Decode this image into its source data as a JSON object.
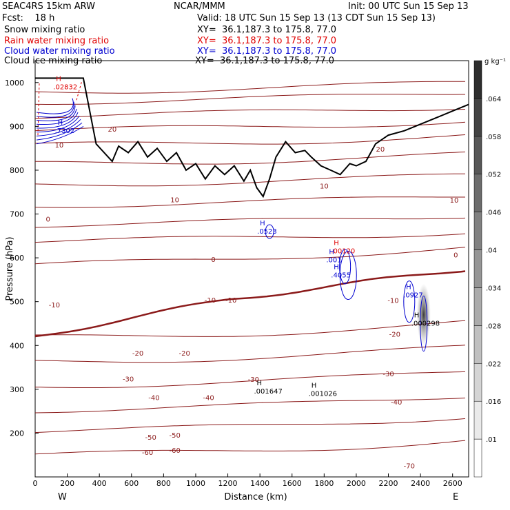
{
  "header": {
    "model": "SEAC4RS 15km ARW",
    "org": "NCAR/MMM",
    "init": "Init: 00 UTC Sun 15 Sep 13",
    "fcst": "Fcst:    18 h",
    "valid": "Valid: 18 UTC Sun 15 Sep 13 (13 CDT Sun 15 Sep 13)",
    "fields": [
      {
        "name": "Snow mixing ratio",
        "xy": "XY=  36.1,187.3 to 175.8, 77.0",
        "color": "#000000"
      },
      {
        "name": "Rain water mixing ratio",
        "xy": "XY=  36.1,187.3 to 175.8, 77.0",
        "color": "#e00000"
      },
      {
        "name": "Cloud water mixing ratio",
        "xy": "XY=  36.1,187.3 to 175.8, 77.0",
        "color": "#0000d0"
      },
      {
        "name": "Cloud ice mixing ratio",
        "xy": "XY=  36.1,187.3 to 175.8, 77.0",
        "color": "#000000"
      }
    ]
  },
  "chart_data": {
    "type": "cross-section",
    "xlabel": "Distance (km)",
    "ylabel": "Pressure (hPa)",
    "xlim": [
      0,
      2700
    ],
    "ylim": [
      1050,
      100
    ],
    "x_ticks": [
      0,
      200,
      400,
      600,
      800,
      1000,
      1200,
      1400,
      1600,
      1800,
      2000,
      2200,
      2400,
      2600
    ],
    "y_ticks": [
      200,
      300,
      400,
      500,
      600,
      700,
      800,
      900,
      1000
    ],
    "y_tick_labels": [
      "200",
      "300",
      "400",
      "500",
      "600",
      "700",
      "800",
      "900",
      "1000"
    ],
    "x_end_labels": {
      "left": "W",
      "right": "E"
    },
    "colorbar": {
      "unit": "g kg⁻¹",
      "levels": [
        ".01",
        ".016",
        ".022",
        ".028",
        ".034",
        ".04",
        ".046",
        ".052",
        ".058",
        ".064"
      ]
    },
    "temperature_contour_labels": [
      "-70",
      "-60",
      "-60",
      "-50",
      "-50",
      "-40",
      "-40",
      "-40",
      "-30",
      "-30",
      "-30",
      "-20",
      "-20",
      "-20",
      "-10",
      "-10",
      "-10",
      "-10",
      "0",
      "0",
      "0",
      "10",
      "10",
      "10",
      "10",
      "20",
      "20"
    ],
    "maxima_labels": [
      {
        "label": "H",
        "value": ".001647",
        "color": "#000000"
      },
      {
        "label": "H",
        "value": ".001026",
        "color": "#000000"
      },
      {
        "label": "H",
        "value": ".000298",
        "color": "#000000"
      },
      {
        "label": "H",
        "value": ".0927",
        "color": "#0000d0"
      },
      {
        "label": "H",
        "value": ".4055",
        "color": "#0000d0"
      },
      {
        "label": "H",
        "value": ".001",
        "color": "#0000d0"
      },
      {
        "label": "H",
        "value": ".00120",
        "color": "#e00000"
      },
      {
        "label": "H",
        "value": ".0523",
        "color": "#0000d0"
      },
      {
        "label": "H",
        "value": ".7302",
        "color": "#0000d0"
      },
      {
        "label": "H",
        "value": ".02832",
        "color": "#e00000"
      }
    ],
    "terrain_color": "#000000",
    "isotherm_color": "#8b1a1a",
    "freezing_line_color": "#8b1a1a"
  }
}
